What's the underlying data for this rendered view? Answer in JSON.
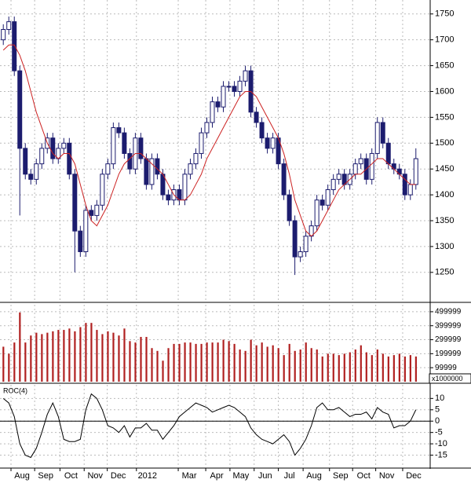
{
  "chart_data": [
    {
      "type": "candlestick",
      "open": [
        1700,
        1720,
        1735,
        1640,
        1490,
        1440,
        1430,
        1460,
        1490,
        1510,
        1470,
        1490,
        1500,
        1440,
        1330,
        1290,
        1370,
        1360,
        1380,
        1440,
        1460,
        1530,
        1520,
        1480,
        1450,
        1510,
        1470,
        1420,
        1470,
        1440,
        1400,
        1390,
        1410,
        1390,
        1440,
        1460,
        1480,
        1520,
        1540,
        1580,
        1570,
        1610,
        1610,
        1600,
        1620,
        1640,
        1560,
        1540,
        1510,
        1490,
        1510,
        1460,
        1400,
        1350,
        1280,
        1290,
        1320,
        1340,
        1390,
        1380,
        1410,
        1430,
        1440,
        1420,
        1440,
        1460,
        1470,
        1430,
        1480,
        1540,
        1500,
        1460,
        1450,
        1440,
        1400,
        1420
      ],
      "high": [
        1730,
        1745,
        1745,
        1650,
        1500,
        1450,
        1470,
        1500,
        1520,
        1520,
        1500,
        1510,
        1510,
        1450,
        1340,
        1380,
        1380,
        1390,
        1450,
        1470,
        1540,
        1540,
        1530,
        1490,
        1520,
        1520,
        1480,
        1480,
        1480,
        1450,
        1410,
        1420,
        1420,
        1450,
        1470,
        1490,
        1530,
        1550,
        1590,
        1590,
        1620,
        1620,
        1620,
        1630,
        1650,
        1650,
        1570,
        1550,
        1520,
        1520,
        1520,
        1470,
        1410,
        1360,
        1300,
        1330,
        1350,
        1400,
        1400,
        1420,
        1440,
        1450,
        1450,
        1450,
        1470,
        1480,
        1480,
        1490,
        1550,
        1550,
        1510,
        1470,
        1460,
        1450,
        1430,
        1490
      ],
      "low": [
        1690,
        1710,
        1630,
        1360,
        1430,
        1420,
        1420,
        1450,
        1480,
        1460,
        1460,
        1480,
        1430,
        1250,
        1280,
        1280,
        1350,
        1350,
        1370,
        1430,
        1450,
        1510,
        1470,
        1440,
        1440,
        1460,
        1410,
        1410,
        1430,
        1390,
        1380,
        1380,
        1380,
        1380,
        1430,
        1450,
        1470,
        1510,
        1530,
        1560,
        1560,
        1600,
        1590,
        1590,
        1610,
        1550,
        1530,
        1500,
        1480,
        1480,
        1450,
        1390,
        1340,
        1245,
        1270,
        1280,
        1310,
        1330,
        1370,
        1370,
        1400,
        1420,
        1410,
        1410,
        1430,
        1450,
        1420,
        1420,
        1470,
        1490,
        1450,
        1440,
        1430,
        1390,
        1390,
        1410
      ],
      "close": [
        1720,
        1735,
        1640,
        1490,
        1440,
        1430,
        1460,
        1490,
        1510,
        1470,
        1490,
        1500,
        1440,
        1330,
        1290,
        1370,
        1360,
        1380,
        1440,
        1460,
        1530,
        1520,
        1480,
        1450,
        1510,
        1470,
        1420,
        1470,
        1440,
        1400,
        1390,
        1410,
        1390,
        1440,
        1460,
        1480,
        1520,
        1540,
        1580,
        1570,
        1610,
        1610,
        1600,
        1620,
        1640,
        1560,
        1540,
        1510,
        1490,
        1510,
        1460,
        1400,
        1350,
        1280,
        1290,
        1320,
        1340,
        1390,
        1380,
        1410,
        1430,
        1440,
        1420,
        1440,
        1460,
        1470,
        1430,
        1480,
        1540,
        1500,
        1460,
        1450,
        1440,
        1400,
        1420,
        1470
      ],
      "moving_average": {
        "color": "#cc2222",
        "values": [
          1680,
          1690,
          1690,
          1670,
          1640,
          1600,
          1560,
          1530,
          1500,
          1480,
          1470,
          1480,
          1480,
          1460,
          1420,
          1380,
          1350,
          1340,
          1360,
          1380,
          1410,
          1440,
          1460,
          1470,
          1480,
          1480,
          1470,
          1460,
          1450,
          1440,
          1420,
          1400,
          1390,
          1390,
          1400,
          1420,
          1440,
          1470,
          1490,
          1510,
          1530,
          1550,
          1570,
          1590,
          1600,
          1600,
          1590,
          1570,
          1550,
          1530,
          1510,
          1480,
          1440,
          1390,
          1360,
          1330,
          1320,
          1330,
          1350,
          1370,
          1390,
          1410,
          1420,
          1430,
          1440,
          1440,
          1450,
          1460,
          1470,
          1470,
          1460,
          1450,
          1440,
          1430,
          1420,
          1420
        ]
      },
      "up_color": "#ffffff",
      "down_color": "#1c1c6e",
      "xlim": [
        -0.6,
        77.6
      ],
      "ylim": [
        1195,
        1777
      ],
      "yticks": [
        1250,
        1300,
        1350,
        1400,
        1450,
        1500,
        1550,
        1600,
        1650,
        1700,
        1750
      ],
      "grid": true
    },
    {
      "type": "bar",
      "color": "#b02020",
      "unit_label": "x1000000",
      "values": [
        250000,
        200000,
        280000,
        495000,
        280000,
        330000,
        350000,
        340000,
        350000,
        360000,
        370000,
        370000,
        380000,
        360000,
        390000,
        420000,
        420000,
        370000,
        340000,
        360000,
        350000,
        330000,
        380000,
        290000,
        280000,
        320000,
        320000,
        240000,
        220000,
        150000,
        240000,
        270000,
        270000,
        280000,
        280000,
        270000,
        270000,
        280000,
        280000,
        280000,
        300000,
        290000,
        270000,
        230000,
        220000,
        300000,
        260000,
        280000,
        250000,
        260000,
        240000,
        190000,
        270000,
        220000,
        230000,
        280000,
        240000,
        230000,
        180000,
        200000,
        200000,
        190000,
        200000,
        210000,
        230000,
        260000,
        210000,
        190000,
        230000,
        200000,
        180000,
        190000,
        200000,
        180000,
        190000,
        180000
      ],
      "ylim": [
        0,
        550000
      ],
      "yticks": [
        99999,
        199999,
        299999,
        399999,
        499999
      ],
      "grid": true
    },
    {
      "type": "line",
      "title": "ROC(4)",
      "color": "#000000",
      "values": [
        10,
        8,
        2,
        -10,
        -15,
        -16,
        -12,
        -5,
        3,
        8,
        2,
        -8,
        -9,
        -9,
        -8,
        5,
        12,
        10,
        5,
        -2,
        -3,
        -5,
        -2,
        -7,
        -3,
        -3,
        -1,
        -4,
        -4,
        -8,
        -5,
        -2,
        2,
        4,
        6,
        8,
        7,
        6,
        4,
        5,
        6,
        7,
        6,
        4,
        2,
        -3,
        -6,
        -8,
        -9,
        -10,
        -8,
        -6,
        -9,
        -15,
        -12,
        -8,
        -2,
        6,
        8,
        5,
        5,
        6,
        4,
        2,
        3,
        3,
        4,
        1,
        6,
        4,
        3,
        -3,
        -2,
        -2,
        0,
        5
      ],
      "ylim": [
        -20,
        16
      ],
      "yticks": [
        -15,
        -10,
        -5,
        0,
        5,
        10
      ],
      "grid": true,
      "xticks": [
        {
          "value": 1.4,
          "label": "Aug"
        },
        {
          "value": 5.7,
          "label": "Sep"
        },
        {
          "value": 10.3,
          "label": "Oct"
        },
        {
          "value": 14.7,
          "label": "Nov"
        },
        {
          "value": 18.9,
          "label": "Dec"
        },
        {
          "value": 24.2,
          "label": "2012"
        },
        {
          "value": 31.8,
          "label": "Mar"
        },
        {
          "value": 36.8,
          "label": "Apr"
        },
        {
          "value": 41.2,
          "label": "May"
        },
        {
          "value": 45.6,
          "label": "Jun"
        },
        {
          "value": 50.0,
          "label": "Jul"
        },
        {
          "value": 54.5,
          "label": "Aug"
        },
        {
          "value": 59.3,
          "label": "Sep"
        },
        {
          "value": 63.5,
          "label": "Oct"
        },
        {
          "value": 67.7,
          "label": "Nov"
        },
        {
          "value": 72.6,
          "label": "Dec"
        }
      ]
    }
  ]
}
